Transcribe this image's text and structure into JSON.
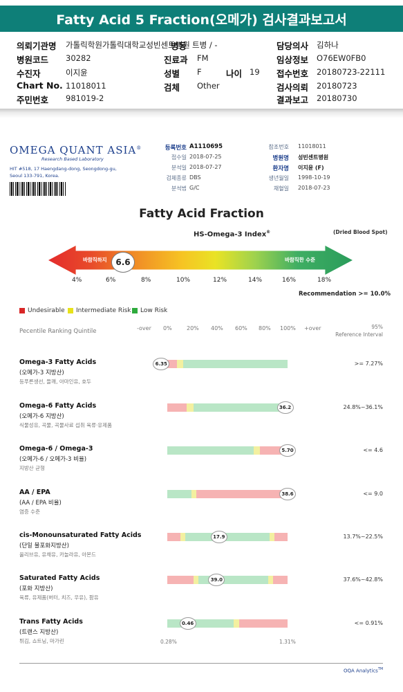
{
  "header": {
    "title": "Fatty Acid 5 Fraction(오메가) 검사결과보고서"
  },
  "patient_info": {
    "hospital_label": "의뢰기관명",
    "hospital": "가톨릭학원가톨릭대학교성빈센트병원",
    "ward_label": "병동",
    "ward": "트병 / -",
    "doctor_label": "담당의사",
    "doctor": "김하나",
    "code_label": "병원코드",
    "code": "30282",
    "dept_label": "진료과",
    "dept": "FM",
    "clinical_label": "임상정보",
    "clinical": "O76EW0FB0",
    "name_label": "수진자",
    "name": "이지윤",
    "sex_label": "성별",
    "sex": "F",
    "age_label": "나이",
    "age": "19",
    "receipt_label": "접수번호",
    "receipt": "20180723-22111",
    "chart_label": "Chart No.",
    "chart": "11018011",
    "specimen_label": "검체",
    "specimen": "Other",
    "request_label": "검사의뢰",
    "request": "20180723",
    "ssn_label": "주민번호",
    "ssn": "981019-2",
    "report_label": "결과보고",
    "report": "20180730"
  },
  "lab": {
    "logo": "OMEGA QUANT ASIA",
    "logo_reg": "®",
    "subtitle": "Research Based Laboratory",
    "address": "HIT #518, 17 Haengdang-dong, Seongdong-gu, Seoul 133-791, Korea."
  },
  "meta": {
    "reg_no_label": "등록번호",
    "reg_no": "A1110695",
    "receipt_date_label": "접수일",
    "receipt_date": "2018-07-25",
    "analysis_date_label": "분석일",
    "analysis_date": "2018-07-27",
    "sample_type_label": "검체종류",
    "sample_type": "DBS",
    "method_label": "분석법",
    "method": "G/C",
    "ref_no_label": "참조번호",
    "ref_no": "11018011",
    "hospital_name_label": "병원명",
    "hospital_name": "성빈센트병원",
    "patient_label": "환자명",
    "patient": "이지윤 (F)",
    "birth_label": "생년월일",
    "birth": "1998-10-19",
    "collection_label": "채혈일",
    "collection": "2018-07-23"
  },
  "index": {
    "chart_title": "Fatty Acid Fraction",
    "index_title": "HS-Omega-3 Index",
    "index_reg": "®",
    "dried": "(Dried Blood Spot)",
    "left_text": "바람직하지",
    "right_text": "바람직한 수준",
    "value_label": "6.6",
    "ticks": [
      "4%",
      "6%",
      "8%",
      "10%",
      "12%",
      "14%",
      "16%",
      "18%"
    ],
    "recommendation": "Recommendation  >= 10.0%"
  },
  "legend": {
    "undesirable": "Undesirable",
    "intermediate": "Intermediate Risk",
    "low": "Low Risk",
    "colors": {
      "undesirable": "#d92727",
      "intermediate": "#e8e21a",
      "low": "#2eaa3d"
    }
  },
  "percentile": {
    "title": "Pecentile Ranking Quintile",
    "ticks": [
      "-over",
      "0%",
      "20%",
      "40%",
      "60%",
      "80%",
      "100%",
      "+over"
    ],
    "ref_interval_1": "95%",
    "ref_interval_2": "Reference Interval"
  },
  "rows": [
    {
      "title": "Omega-3 Fatty Acids",
      "sub": "(오메가-3 지방산)",
      "note": "등푸른생선, 들깨, 아마인유, 호두",
      "ref": ">= 7.27%",
      "value": "6.35",
      "marker_pct": -0.05,
      "segments": [
        [
          "red",
          0.08
        ],
        [
          "yellow",
          0.05
        ],
        [
          "green",
          0.87
        ]
      ]
    },
    {
      "title": "Omega-6 Fatty Acids",
      "sub": "(오메가-6 지방산)",
      "note": "식물성유, 곡물, 곡물사료 섭취 육류·유제품",
      "ref": "24.8%~36.1%",
      "value": "36.2",
      "marker_pct": 0.98,
      "segments": [
        [
          "red",
          0.16
        ],
        [
          "yellow",
          0.06
        ],
        [
          "green",
          0.72
        ],
        [
          "yellow",
          0.02
        ],
        [
          "red",
          0.04
        ]
      ]
    },
    {
      "title": "Omega-6 / Omega-3",
      "sub": "(오메가-6 / 오메가-3 비율)",
      "note": "지방산 균형",
      "ref": "<= 4.6",
      "value": "5.70",
      "marker_pct": 1.0,
      "segments": [
        [
          "green",
          0.72
        ],
        [
          "yellow",
          0.05
        ],
        [
          "red",
          0.23
        ]
      ]
    },
    {
      "title": "AA / EPA",
      "sub": "(AA / EPA 비율)",
      "note": "염증 수준",
      "ref": "<= 9.0",
      "value": "38.6",
      "marker_pct": 1.0,
      "segments": [
        [
          "green",
          0.2
        ],
        [
          "yellow",
          0.04
        ],
        [
          "red",
          0.76
        ]
      ]
    },
    {
      "title": "cis-Monounsaturated Fatty Acids",
      "sub": "(단일 불포화지방산)",
      "note": "올리브유, 유채유, 카놀라유, 아몬드",
      "ref": "13.7%~22.5%",
      "value": "17.9",
      "marker_pct": 0.43,
      "segments": [
        [
          "red",
          0.11
        ],
        [
          "yellow",
          0.04
        ],
        [
          "green",
          0.7
        ],
        [
          "yellow",
          0.04
        ],
        [
          "red",
          0.11
        ]
      ]
    },
    {
      "title": "Saturated Fatty Acids",
      "sub": "(포화 지방산)",
      "note": "육류, 유제품(버터, 치즈, 우유), 팜유",
      "ref": "37.6%~42.8%",
      "value": "39.0",
      "marker_pct": 0.41,
      "segments": [
        [
          "red",
          0.22
        ],
        [
          "yellow",
          0.04
        ],
        [
          "green",
          0.58
        ],
        [
          "yellow",
          0.04
        ],
        [
          "red",
          0.12
        ]
      ]
    },
    {
      "title": "Trans Fatty Acids",
      "sub": "(트랜스 지방산)",
      "note": "튀김, 쇼트닝, 마가린",
      "ref": "<= 0.91%",
      "value": "0.46",
      "marker_pct": 0.17,
      "segments": [
        [
          "green",
          0.55
        ],
        [
          "yellow",
          0.05
        ],
        [
          "red",
          0.4
        ]
      ]
    }
  ],
  "axis_bottom": {
    "left": "0.28%",
    "right": "1.31%"
  },
  "footer": {
    "brand": "OQA Analytics",
    "tm": "TM"
  }
}
